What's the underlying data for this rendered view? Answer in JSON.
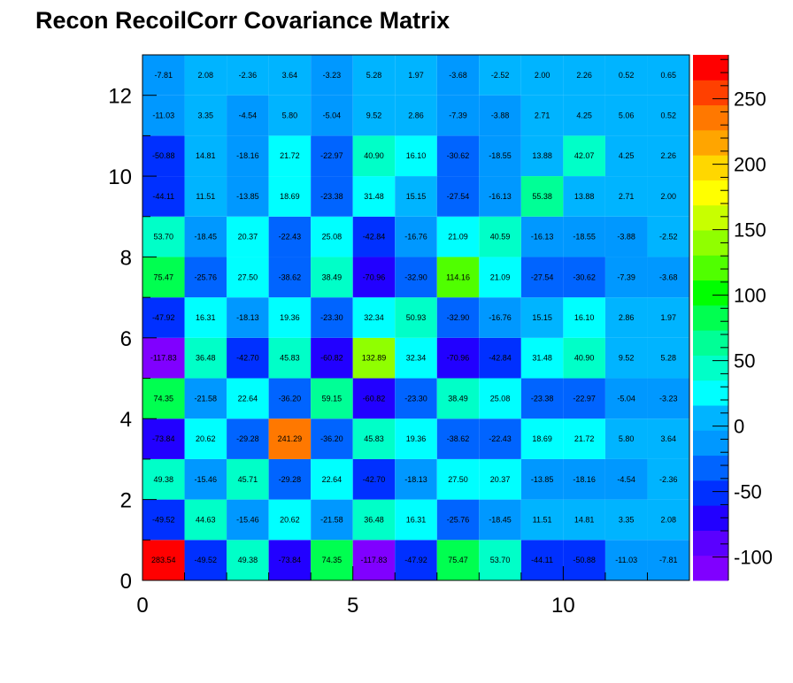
{
  "chart_data": {
    "type": "heatmap",
    "title": "Recon RecoilCorr Covariance Matrix",
    "xlabel": "",
    "ylabel": "",
    "xlim": [
      0,
      13
    ],
    "ylim": [
      0,
      13
    ],
    "x_ticks": [
      0,
      5,
      10
    ],
    "y_ticks": [
      0,
      2,
      4,
      6,
      8,
      10,
      12
    ],
    "zlim": [
      -117.83,
      283.54
    ],
    "colorbar_ticks": [
      -100,
      -50,
      0,
      50,
      100,
      150,
      200,
      250
    ],
    "colorbar_colors": [
      "#8000ff",
      "#5a00ff",
      "#2200ff",
      "#0030ff",
      "#0064ff",
      "#0098ff",
      "#00b4ff",
      "#00ffff",
      "#00ffc8",
      "#00ff96",
      "#00ff50",
      "#00ff00",
      "#50ff00",
      "#90ff00",
      "#c8ff00",
      "#ffff00",
      "#ffd700",
      "#ffa500",
      "#ff7800",
      "#ff4000",
      "#ff0000"
    ],
    "grid": false,
    "legend": "none",
    "rows_bottom_to_top": [
      [
        283.54,
        -49.52,
        49.38,
        -73.84,
        74.35,
        -117.83,
        -47.92,
        75.47,
        53.7,
        -44.11,
        -50.88,
        -11.03,
        -7.81
      ],
      [
        -49.52,
        44.63,
        -15.46,
        20.62,
        -21.58,
        36.48,
        16.31,
        -25.76,
        -18.45,
        11.51,
        14.81,
        3.35,
        2.08
      ],
      [
        49.38,
        -15.46,
        45.71,
        -29.28,
        22.64,
        -42.7,
        -18.13,
        27.5,
        20.37,
        -13.85,
        -18.16,
        -4.54,
        -2.36
      ],
      [
        -73.84,
        20.62,
        -29.28,
        241.29,
        -36.2,
        45.83,
        19.36,
        -38.62,
        -22.43,
        18.69,
        21.72,
        5.8,
        3.64
      ],
      [
        74.35,
        -21.58,
        22.64,
        -36.2,
        59.15,
        -60.82,
        -23.3,
        38.49,
        25.08,
        -23.38,
        -22.97,
        -5.04,
        -3.23
      ],
      [
        -117.83,
        36.48,
        -42.7,
        45.83,
        -60.82,
        132.89,
        32.34,
        -70.96,
        -42.84,
        31.48,
        40.9,
        9.52,
        5.28
      ],
      [
        -47.92,
        16.31,
        -18.13,
        19.36,
        -23.3,
        32.34,
        50.93,
        -32.9,
        -16.76,
        15.15,
        16.1,
        2.86,
        1.97
      ],
      [
        75.47,
        -25.76,
        27.5,
        -38.62,
        38.49,
        -70.96,
        -32.9,
        114.16,
        21.09,
        -27.54,
        -30.62,
        -7.39,
        -3.68
      ],
      [
        53.7,
        -18.45,
        20.37,
        -22.43,
        25.08,
        -42.84,
        -16.76,
        21.09,
        40.59,
        -16.13,
        -18.55,
        -3.88,
        -2.52
      ],
      [
        -44.11,
        11.51,
        -13.85,
        18.69,
        -23.38,
        31.48,
        15.15,
        -27.54,
        -16.13,
        55.38,
        13.88,
        2.71,
        2.0
      ],
      [
        -50.88,
        14.81,
        -18.16,
        21.72,
        -22.97,
        40.9,
        16.1,
        -30.62,
        -18.55,
        13.88,
        42.07,
        4.25,
        2.26
      ],
      [
        -11.03,
        3.35,
        -4.54,
        5.8,
        -5.04,
        9.52,
        2.86,
        -7.39,
        -3.88,
        2.71,
        4.25,
        5.06,
        0.52
      ],
      [
        -7.81,
        2.08,
        -2.36,
        3.64,
        -3.23,
        5.28,
        1.97,
        -3.68,
        -2.52,
        2.0,
        2.26,
        0.52,
        0.65
      ]
    ]
  }
}
